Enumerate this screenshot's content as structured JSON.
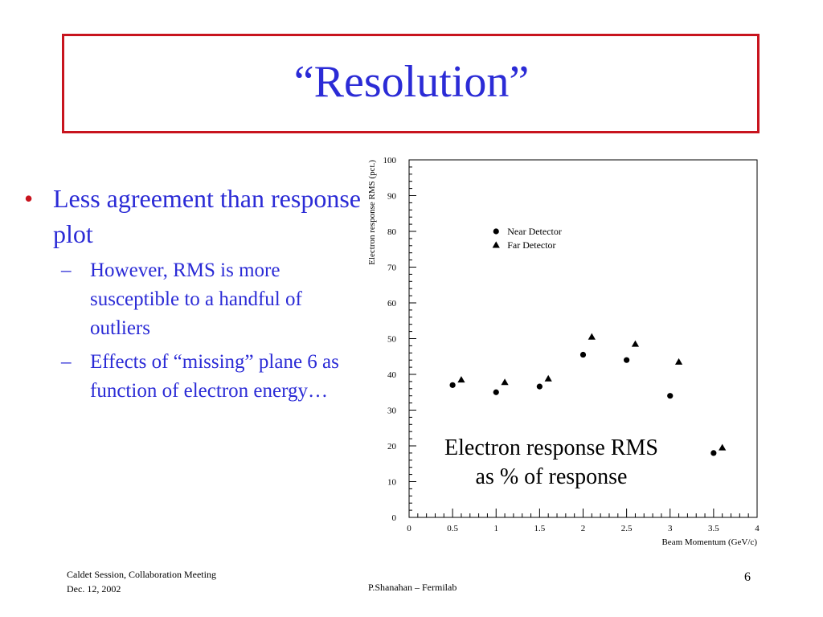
{
  "slide": {
    "title": "“Resolution”",
    "bullets": [
      {
        "text": "Less agreement than response plot",
        "sub": [
          "However, RMS is more susceptible to a handful of outliers",
          "Effects of “missing” plane 6 as function of electron energy…"
        ]
      }
    ],
    "caption_line1": "Electron response RMS",
    "caption_line2": "as % of response",
    "footer_left_line1": "Caldet Session, Collaboration Meeting",
    "footer_left_line2": "Dec. 12, 2002",
    "footer_center": "P.Shanahan – Fermilab",
    "page_number": "6",
    "colors": {
      "title": "#2b2bd6",
      "border": "#c8141e",
      "bullet": "#c8141e",
      "text": "#2b2bd6"
    }
  },
  "chart_data": {
    "type": "scatter",
    "xlabel": "Beam Momentum (GeV/c)",
    "ylabel": "Electron response RMS (pct.)",
    "xlim": [
      0,
      4
    ],
    "ylim": [
      0,
      100
    ],
    "xticks": [
      0,
      0.5,
      1,
      1.5,
      2,
      2.5,
      3,
      3.5,
      4
    ],
    "xtick_labels": [
      "0",
      "0.5",
      "1",
      "1.5",
      "2",
      "2.5",
      "3",
      "3.5",
      "4"
    ],
    "yticks": [
      0,
      10,
      20,
      30,
      40,
      50,
      60,
      70,
      80,
      90,
      100
    ],
    "ytick_labels": [
      "0",
      "10",
      "20",
      "30",
      "40",
      "50",
      "60",
      "70",
      "80",
      "90",
      "100"
    ],
    "legend_position": "upper-middle",
    "series": [
      {
        "name": "Near Detector",
        "marker": "circle",
        "x": [
          0.5,
          1.0,
          1.5,
          2.0,
          2.5,
          3.0,
          3.5
        ],
        "y": [
          37,
          35,
          36.6,
          45.5,
          44,
          34,
          18
        ]
      },
      {
        "name": "Far Detector",
        "marker": "triangle",
        "x": [
          0.6,
          1.1,
          1.6,
          2.1,
          2.6,
          3.1,
          3.6
        ],
        "y": [
          38.5,
          37.8,
          38.8,
          50.5,
          48.5,
          43.5,
          19.5
        ]
      }
    ]
  }
}
